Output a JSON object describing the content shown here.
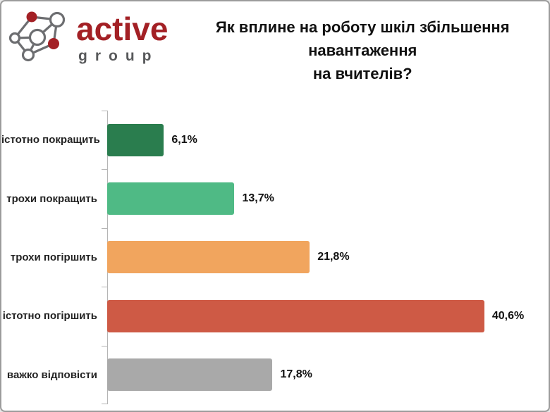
{
  "page": {
    "background": "#ffffff",
    "border_color": "#9c9c9c"
  },
  "logo": {
    "brand_primary": "active",
    "brand_secondary": "group",
    "brand_color": "#a32025",
    "secondary_color": "#58595b",
    "icon": "network-graph-icon",
    "icon_node_color": "#a32025",
    "icon_line_color": "#6d6e71"
  },
  "title": {
    "line1": "Як вплине на роботу шкіл збільшення навантаження",
    "line2": "на вчителів?"
  },
  "chart_data": {
    "type": "bar",
    "orientation": "horizontal",
    "title": "Як вплине на роботу шкіл збільшення навантаження на вчителів?",
    "categories": [
      "істотно покращить",
      "трохи покращить",
      "трохи погіршить",
      "істотно погіршить",
      "важко відповісти"
    ],
    "values": [
      6.1,
      13.7,
      21.8,
      40.6,
      17.8
    ],
    "value_labels": [
      "6,1%",
      "13,7%",
      "21,8%",
      "40,6%",
      "17,8%"
    ],
    "bar_colors": [
      "#2a7d4e",
      "#4fba85",
      "#f1a55e",
      "#ce5a45",
      "#a9a9a9"
    ],
    "xlabel": "",
    "ylabel": "",
    "xlim": [
      0,
      46
    ],
    "grid": false,
    "legend": false,
    "axis_color": "#b5b5b5",
    "value_label_position": "end-of-bar"
  }
}
